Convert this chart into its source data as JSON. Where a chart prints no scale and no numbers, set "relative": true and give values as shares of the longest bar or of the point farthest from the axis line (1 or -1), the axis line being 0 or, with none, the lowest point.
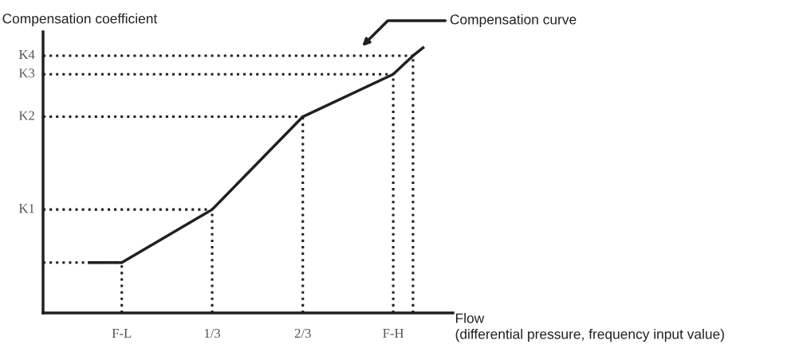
{
  "chart_data": {
    "type": "line",
    "relative": true,
    "ylabel": "Compensation coefficient",
    "xlabel": "Flow\n(differential pressure, frequency input value)",
    "x": [
      -0.12,
      0,
      0.333,
      0.667,
      1,
      1.073,
      1.11
    ],
    "series": [
      {
        "color": "#231f20",
        "values": [
          0.19,
          0.19,
          0.39,
          0.74,
          0.9,
          0.97,
          1
        ]
      }
    ],
    "xlim": [
      -0.29,
      1.22
    ],
    "xticks": [
      {
        "value": 0,
        "label": "F-L"
      },
      {
        "value": 0.333,
        "label": "1/3"
      },
      {
        "value": 0.667,
        "label": "2/3"
      },
      {
        "value": 1,
        "label": "F-H"
      }
    ],
    "ref_lines": [
      {
        "axis": "y",
        "value": 0.19,
        "label": null,
        "line_style": "dotted"
      },
      {
        "axis": "y",
        "value": 0.39,
        "label": "K1",
        "line_style": "dotted"
      },
      {
        "axis": "y",
        "value": 0.74,
        "label": "K2",
        "line_style": "dotted"
      },
      {
        "axis": "y",
        "value": 0.9,
        "label": "K3",
        "line_style": "dotted"
      },
      {
        "axis": "y",
        "value": 0.97,
        "label": "K4",
        "line_style": "dotted"
      },
      {
        "axis": "x",
        "value": 0,
        "label": null,
        "line_style": "dotted"
      },
      {
        "axis": "x",
        "value": 0.333,
        "label": null,
        "line_style": "dotted"
      },
      {
        "axis": "x",
        "value": 0.667,
        "label": null,
        "line_style": "dotted"
      },
      {
        "axis": "x",
        "value": 1,
        "label": null,
        "line_style": "dotted"
      },
      {
        "axis": "x",
        "value": 1.073,
        "label": null,
        "line_style": "dotted"
      }
    ],
    "annotations": [
      "Compensation curve"
    ],
    "grid": false,
    "legend": false,
    "marker": "none",
    "line_style": "solid"
  }
}
